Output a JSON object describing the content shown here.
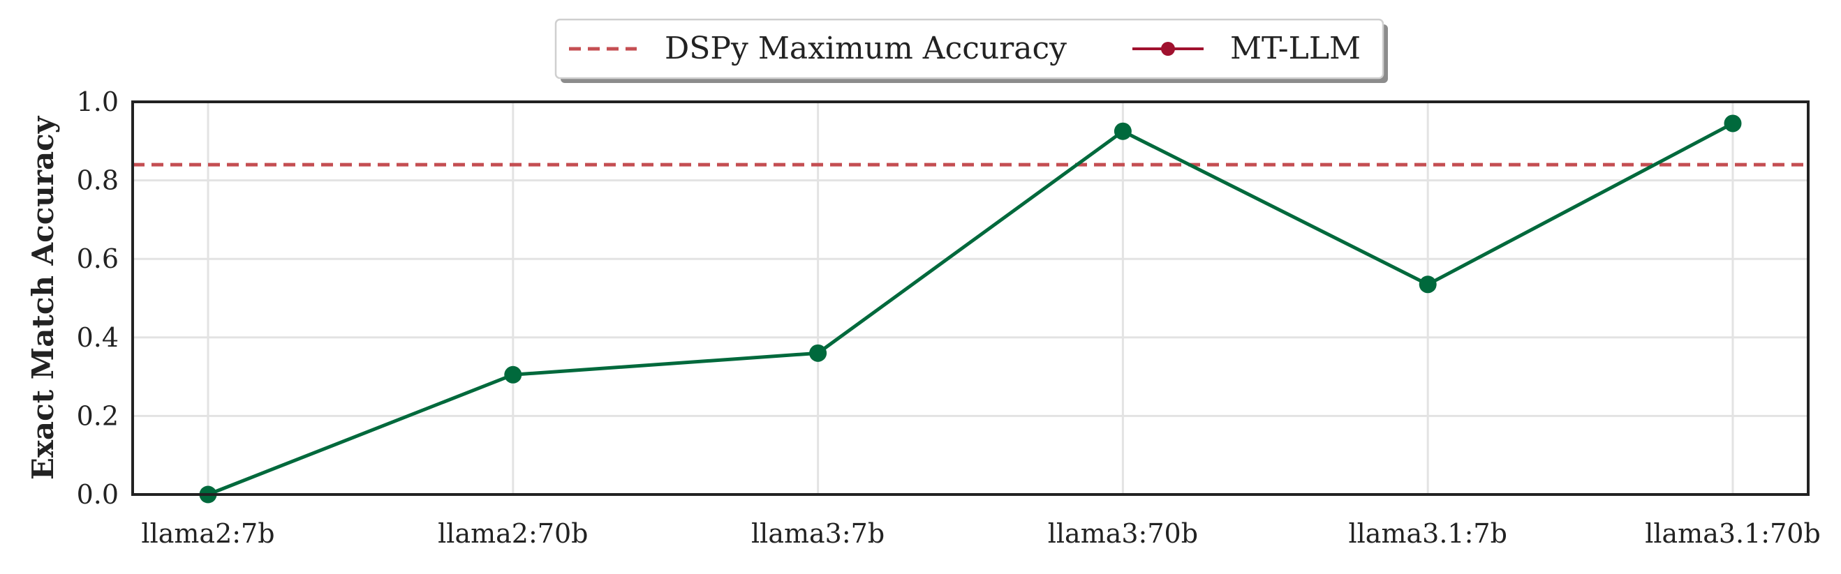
{
  "chart_data": {
    "type": "line",
    "title": "",
    "xlabel": "",
    "ylabel": "Exact Match Accuracy",
    "categories": [
      "llama2:7b",
      "llama2:70b",
      "llama3:7b",
      "llama3:70b",
      "llama3.1:7b",
      "llama3.1:70b"
    ],
    "series": [
      {
        "name": "MT-LLM",
        "values": [
          0.0,
          0.305,
          0.36,
          0.925,
          0.535,
          0.945
        ],
        "color": "#00693c",
        "legend_color": "#a0112e",
        "marker": "circle"
      }
    ],
    "reference_lines": [
      {
        "name": "DSPy Maximum Accuracy",
        "y": 0.84,
        "color": "#c44e52",
        "style": "dashed"
      }
    ],
    "ylim": [
      0.0,
      1.0
    ],
    "yticks": [
      "0.0",
      "0.2",
      "0.4",
      "0.6",
      "0.8",
      "1.0"
    ],
    "grid": true,
    "legend_position": "top-center"
  }
}
